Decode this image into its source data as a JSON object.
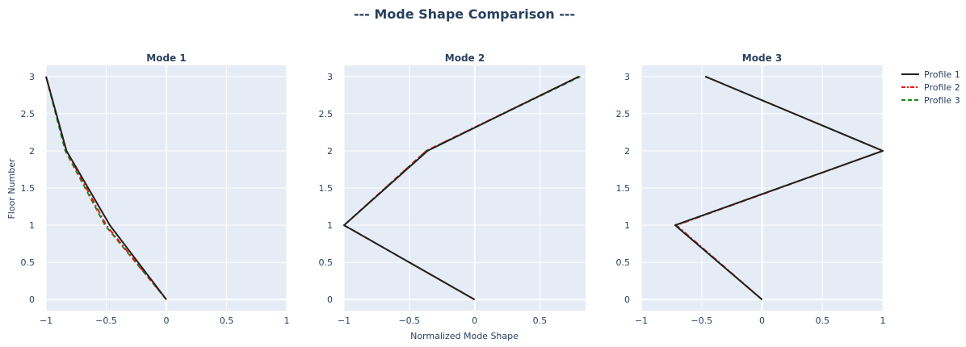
{
  "title": "--- Mode Shape Comparison ---",
  "xlabel": "Normalized Mode Shape",
  "ylabel": "Floor Number",
  "legend": [
    {
      "name": "Profile 1",
      "color": "#222222",
      "dash": "solid"
    },
    {
      "name": "Profile 2",
      "color": "#e8160c",
      "dash": "dashdot"
    },
    {
      "name": "Profile 3",
      "color": "#1a8a1a",
      "dash": "dash"
    }
  ],
  "colors": {
    "plot_bg": "#e5ecf6",
    "grid": "#ffffff",
    "text": "#2a3f5f"
  },
  "chart_data": [
    {
      "type": "line",
      "title": "Mode 1",
      "xlim": [
        -1,
        1
      ],
      "ylim": [
        -0.15,
        3.15
      ],
      "xticks": [
        -1,
        -0.5,
        0,
        0.5,
        1
      ],
      "xtick_labels": [
        "−1",
        "−0.5",
        "0",
        "0.5",
        "1"
      ],
      "yticks": [
        0,
        0.5,
        1,
        1.5,
        2,
        2.5,
        3
      ],
      "ytick_labels": [
        "0",
        "0.5",
        "1",
        "1.5",
        "2",
        "2.5",
        "3"
      ],
      "series": [
        {
          "name": "Profile 1",
          "x": [
            0,
            -0.47,
            -0.83,
            -1.0
          ],
          "y": [
            0,
            1,
            2,
            3
          ]
        },
        {
          "name": "Profile 2",
          "x": [
            0,
            -0.5,
            -0.83,
            -1.0
          ],
          "y": [
            0,
            1,
            2,
            3
          ]
        },
        {
          "name": "Profile 3",
          "x": [
            0,
            -0.51,
            -0.84,
            -1.0
          ],
          "y": [
            0,
            1,
            2,
            3
          ]
        }
      ]
    },
    {
      "type": "line",
      "title": "Mode 2",
      "xlim": [
        -1,
        0.85
      ],
      "ylim": [
        -0.15,
        3.15
      ],
      "xticks": [
        -1,
        -0.5,
        0,
        0.5
      ],
      "xtick_labels": [
        "−1",
        "−0.5",
        "0",
        "0.5"
      ],
      "yticks": [
        0,
        0.5,
        1,
        1.5,
        2,
        2.5,
        3
      ],
      "ytick_labels": [
        "0",
        "0.5",
        "1",
        "1.5",
        "2",
        "2.5",
        "3"
      ],
      "series": [
        {
          "name": "Profile 1",
          "x": [
            0,
            -1.0,
            -0.36,
            0.8
          ],
          "y": [
            0,
            1,
            2,
            3
          ]
        },
        {
          "name": "Profile 2",
          "x": [
            0,
            -1.0,
            -0.37,
            0.8
          ],
          "y": [
            0,
            1,
            2,
            3
          ]
        },
        {
          "name": "Profile 3",
          "x": [
            0,
            -1.0,
            -0.37,
            0.81
          ],
          "y": [
            0,
            1,
            2,
            3
          ]
        }
      ]
    },
    {
      "type": "line",
      "title": "Mode 3",
      "xlim": [
        -1,
        1
      ],
      "ylim": [
        -0.15,
        3.15
      ],
      "xticks": [
        -1,
        -0.5,
        0,
        0.5,
        1
      ],
      "xtick_labels": [
        "−1",
        "−0.5",
        "0",
        "0.5",
        "1"
      ],
      "yticks": [
        0,
        0.5,
        1,
        1.5,
        2,
        2.5,
        3
      ],
      "ytick_labels": [
        "0",
        "0.5",
        "1",
        "1.5",
        "2",
        "2.5",
        "3"
      ],
      "series": [
        {
          "name": "Profile 1",
          "x": [
            0,
            -0.72,
            1.0,
            -0.47
          ],
          "y": [
            0,
            1,
            2,
            3
          ]
        },
        {
          "name": "Profile 2",
          "x": [
            0,
            -0.71,
            1.0,
            -0.47
          ],
          "y": [
            0,
            1,
            2,
            3
          ]
        },
        {
          "name": "Profile 3",
          "x": [
            0,
            -0.72,
            1.0,
            -0.47
          ],
          "y": [
            0,
            1,
            2,
            3
          ]
        }
      ]
    }
  ]
}
